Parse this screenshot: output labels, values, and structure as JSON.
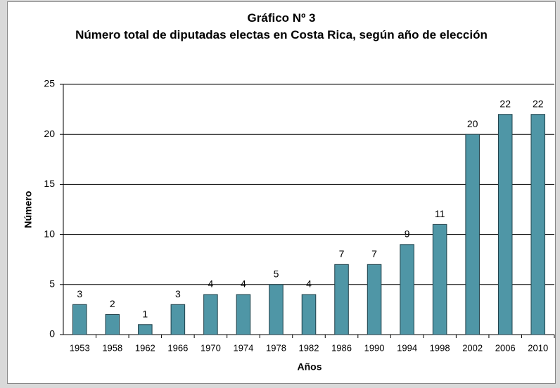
{
  "chart_data": {
    "type": "bar",
    "title": "Gráfico Nº 3",
    "subtitle": "Número total de diputadas electas en Costa Rica, según año de elección",
    "x_label": "Años",
    "y_label": "Número",
    "categories": [
      "1953",
      "1958",
      "1962",
      "1966",
      "1970",
      "1974",
      "1978",
      "1982",
      "1986",
      "1990",
      "1994",
      "1998",
      "2002",
      "2006",
      "2010"
    ],
    "values": [
      3,
      2,
      1,
      3,
      4,
      4,
      5,
      4,
      7,
      7,
      9,
      11,
      20,
      22,
      22
    ],
    "color": "#4f96a6",
    "ylim": [
      0,
      25
    ],
    "yticks": [
      0,
      5,
      10,
      15,
      20,
      25
    ],
    "grid": true
  }
}
